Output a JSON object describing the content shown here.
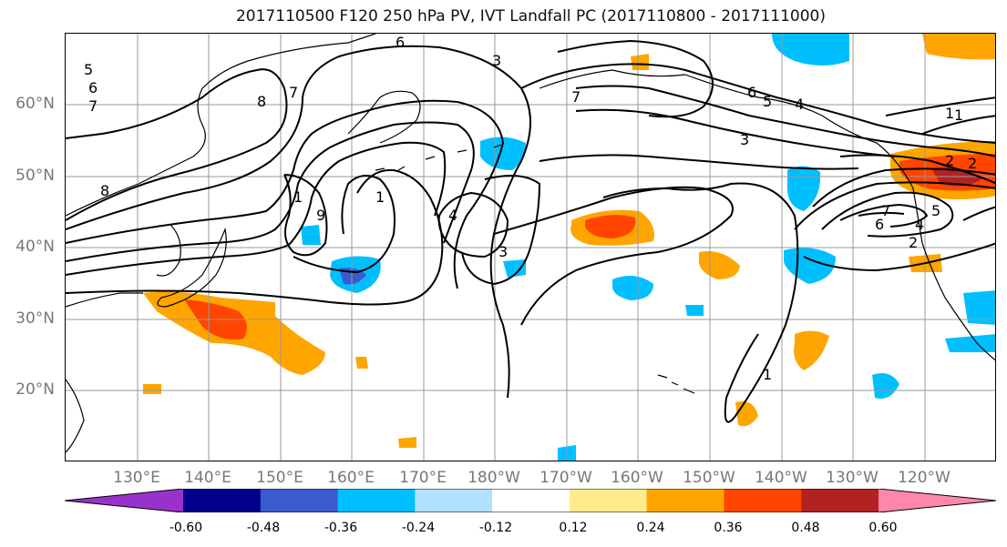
{
  "title": "2017110500 F120 250 hPa PV, IVT Landfall PC (2017110800 - 2017111000)",
  "lat_labels": [
    "60°N",
    "50°N",
    "40°N",
    "30°N",
    "20°N"
  ],
  "lon_labels": [
    "130°E",
    "140°E",
    "150°E",
    "160°E",
    "170°E",
    "180°W",
    "170°W",
    "160°W",
    "150°W",
    "140°W",
    "130°W",
    "120°W"
  ],
  "colorbar": {
    "ticks": [
      "-0.60",
      "-0.48",
      "-0.36",
      "-0.24",
      "-0.12",
      "0.12",
      "0.24",
      "0.36",
      "0.48",
      "0.60"
    ],
    "colors": [
      "#9932CC",
      "#00008B",
      "#3A5BCD",
      "#00BFFF",
      "#B0E2FF",
      "#FFFFFF",
      "#FFEC8B",
      "#FFA500",
      "#FF4500",
      "#B22222",
      "#FF88AA"
    ]
  },
  "contour_labels": [
    "5",
    "6",
    "7",
    "8",
    "6",
    "7",
    "8",
    "1",
    "9",
    "1",
    "4",
    "3",
    "3",
    "6",
    "5",
    "4",
    "7",
    "3",
    "1",
    "1",
    "2",
    "6",
    "7",
    "4",
    "5",
    "2",
    "2",
    "1"
  ]
}
